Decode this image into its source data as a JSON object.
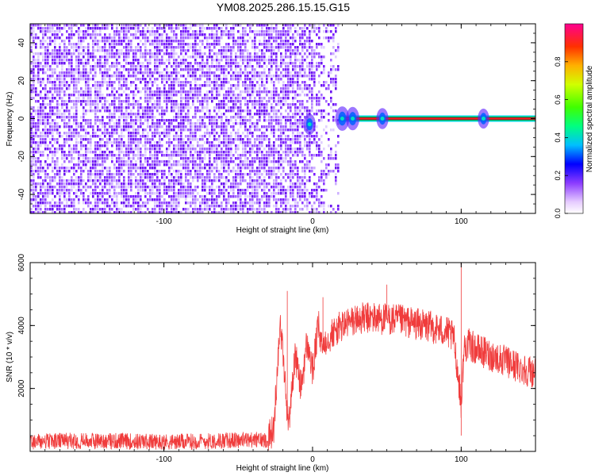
{
  "title": "YM08.2025.286.15.15.G15",
  "colors": {
    "line": "#f03c3c",
    "axis": "#000000",
    "heat_low": "#8c3cff",
    "heat_mid": "#0064ff",
    "heat_high": "#ff0000"
  },
  "chart_data": [
    {
      "type": "heatmap",
      "title": "YM08.2025.286.15.15.G15",
      "xlabel": "Height of straight line (km)",
      "ylabel": "Frequency (Hz)",
      "xlim": [
        -190,
        150
      ],
      "ylim": [
        -50,
        50
      ],
      "xticks": [
        -100,
        0,
        100
      ],
      "yticks": [
        -40,
        -20,
        0,
        20,
        40
      ],
      "grid": false,
      "noise_region_x": [
        -190,
        18
      ],
      "signal_band": {
        "x": [
          18,
          150
        ],
        "frequency": 0
      },
      "features": [
        {
          "x": -2,
          "frequency": -3,
          "amplitude": 0.35
        },
        {
          "x": 20,
          "frequency": 0,
          "amplitude": 0.5
        },
        {
          "x": 27,
          "frequency": 0,
          "amplitude": 0.45
        },
        {
          "x": 47,
          "frequency": 0,
          "amplitude": 0.35
        },
        {
          "x": 115,
          "frequency": 0,
          "amplitude": 0.3
        }
      ],
      "colorbar": {
        "label": "Normalized spectral amplitude",
        "ticks": [
          "0.0",
          "0.2",
          "0.4",
          "0.6",
          "0.8"
        ],
        "range": [
          0,
          1
        ]
      }
    },
    {
      "type": "line",
      "xlabel": "Height of straight line (km)",
      "ylabel": "SNR (10 * v/v)",
      "xlim": [
        -190,
        150
      ],
      "ylim": [
        0,
        6000
      ],
      "xticks": [
        -100,
        0,
        100
      ],
      "yticks": [
        2000,
        4000,
        6000
      ],
      "grid": false,
      "envelope_x": [
        -190,
        -170,
        -150,
        -130,
        -110,
        -90,
        -70,
        -50,
        -30,
        -26,
        -24,
        -22,
        -20,
        -18,
        -16,
        -14,
        -12,
        -10,
        -8,
        -6,
        -4,
        -2,
        0,
        2,
        4,
        6,
        8,
        10,
        15,
        20,
        30,
        40,
        50,
        60,
        70,
        80,
        90,
        95,
        98,
        100,
        102,
        105,
        110,
        120,
        130,
        140,
        150
      ],
      "envelope_y": [
        400,
        420,
        430,
        420,
        400,
        390,
        420,
        450,
        460,
        700,
        2400,
        4100,
        3200,
        1800,
        900,
        1900,
        3000,
        2700,
        2000,
        2600,
        3400,
        3100,
        2500,
        3300,
        4000,
        3300,
        3500,
        3600,
        3800,
        4000,
        4200,
        4250,
        4200,
        4150,
        4050,
        3950,
        3800,
        3600,
        2400,
        1500,
        3300,
        3400,
        3250,
        3050,
        2850,
        2650,
        2500
      ],
      "spikes": [
        {
          "x": -17,
          "y": 5100
        },
        {
          "x": 7,
          "y": 4900
        },
        {
          "x": 50,
          "y": 5300
        },
        {
          "x": 100,
          "y": 6000
        },
        {
          "x": 100,
          "y": 500
        }
      ]
    }
  ]
}
